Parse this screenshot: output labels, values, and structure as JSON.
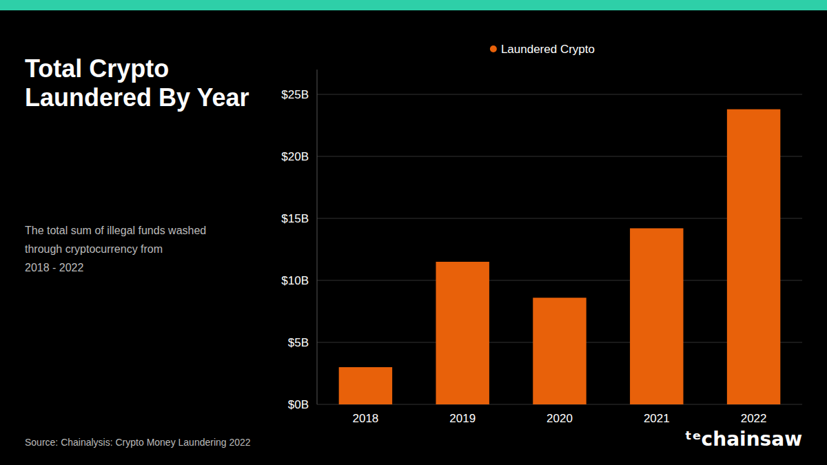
{
  "chart_data": {
    "type": "bar",
    "title": "Total Crypto\nLaundered By Year",
    "subtitle": "The total sum of illegal funds washed\nthrough cryptocurrency from\n2018 - 2022",
    "annotations": [
      "Source: Chainalysis: Crypto Money Laundering 2022",
      "ᵗᵉchainsaw"
    ],
    "categories": [
      "2018",
      "2019",
      "2020",
      "2021",
      "2022"
    ],
    "series": [
      {
        "name": "Laundered Crypto",
        "color": "#E8610A",
        "values": [
          3.0,
          11.5,
          8.6,
          14.2,
          23.8
        ]
      }
    ],
    "ylim": [
      0,
      27
    ],
    "yticks": [
      {
        "value": 0,
        "label": "$0B"
      },
      {
        "value": 5,
        "label": "$5B"
      },
      {
        "value": 10,
        "label": "$10B"
      },
      {
        "value": 15,
        "label": "$15B"
      },
      {
        "value": 20,
        "label": "$20B"
      },
      {
        "value": 25,
        "label": "$25B"
      }
    ],
    "grid": true,
    "legend": "top"
  }
}
